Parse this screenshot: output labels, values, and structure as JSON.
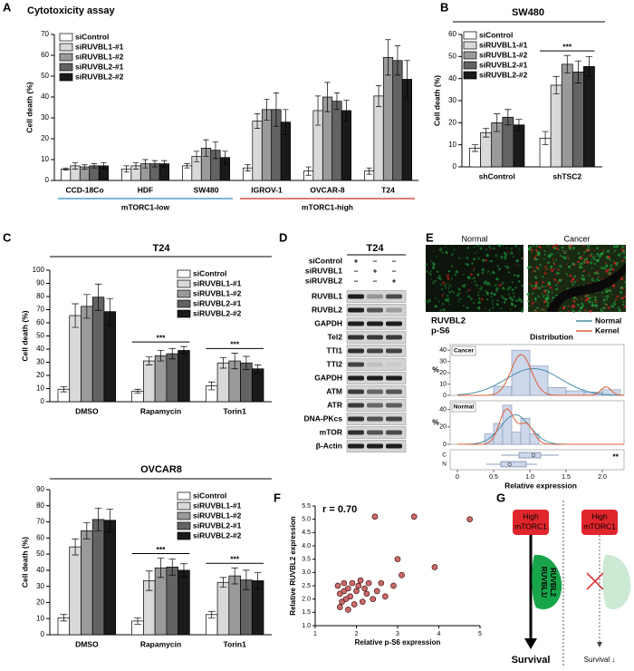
{
  "chart_data": [
    {
      "type": "bar",
      "panel_label": "A",
      "title": "Cytotoxicity assay",
      "ylabel": "Cell death (%)",
      "categories": [
        "CCD-18Co",
        "HDF",
        "SW480",
        "IGROV-1",
        "OVCAR-8",
        "T24"
      ],
      "series": [
        {
          "name": "siControl",
          "color": "#ffffff",
          "values": [
            5.5,
            5.5,
            7,
            6,
            4.5,
            4.5
          ],
          "errors": [
            0.5,
            1.5,
            1,
            1.5,
            2,
            1.5
          ]
        },
        {
          "name": "siRUVBL1-#1",
          "color": "#d9d9d9",
          "values": [
            7,
            7,
            11.5,
            28.5,
            33.5,
            40.5
          ],
          "errors": [
            1.5,
            1.5,
            2.5,
            3.5,
            7,
            5
          ]
        },
        {
          "name": "siRUVBL1-#2",
          "color": "#9a9a9a",
          "values": [
            6.5,
            8,
            15.5,
            34,
            40,
            59
          ],
          "errors": [
            1,
            2,
            4,
            5,
            7,
            8.5
          ]
        },
        {
          "name": "siRUVBL2-#1",
          "color": "#636363",
          "values": [
            7,
            8,
            14.5,
            34,
            38,
            57.5
          ],
          "errors": [
            1,
            1.5,
            4,
            8,
            4,
            7
          ]
        },
        {
          "name": "siRUVBL2-#2",
          "color": "#1a1a1a",
          "values": [
            7,
            8,
            11,
            28,
            33.5,
            48.5
          ],
          "errors": [
            1.5,
            1.5,
            3,
            6,
            5,
            9
          ]
        }
      ],
      "ylim": [
        0,
        70
      ],
      "yticks": [
        0,
        10,
        20,
        30,
        40,
        50,
        60,
        70
      ],
      "groups": [
        {
          "label": "mTORC1-low",
          "categories": [
            "CCD-18Co",
            "HDF",
            "SW480"
          ],
          "color": "#2f8ac4"
        },
        {
          "label": "mTORC1-high",
          "categories": [
            "IGROV-1",
            "OVCAR-8",
            "T24"
          ],
          "color": "#d12a2a"
        }
      ]
    },
    {
      "type": "bar",
      "panel_label": "B",
      "title": "SW480",
      "ylabel": "Cell death (%)",
      "categories": [
        "shControl",
        "shTSC2"
      ],
      "series": [
        {
          "name": "siControl",
          "color": "#ffffff",
          "values": [
            8.5,
            13
          ],
          "errors": [
            1.5,
            3
          ]
        },
        {
          "name": "siRUVBL1-#1",
          "color": "#d9d9d9",
          "values": [
            15.5,
            37
          ],
          "errors": [
            2,
            4
          ]
        },
        {
          "name": "siRUVBL1-#2",
          "color": "#9a9a9a",
          "values": [
            20,
            46.5
          ],
          "errors": [
            4,
            4
          ]
        },
        {
          "name": "siRUVBL2-#1",
          "color": "#636363",
          "values": [
            22.5,
            43
          ],
          "errors": [
            3.5,
            5
          ]
        },
        {
          "name": "siRUVBL2-#2",
          "color": "#1a1a1a",
          "values": [
            19,
            45.5
          ],
          "errors": [
            2.5,
            4.5
          ]
        }
      ],
      "ylim": [
        0,
        60
      ],
      "yticks": [
        0,
        10,
        20,
        30,
        40,
        50,
        60
      ],
      "annotations": [
        {
          "text": "***",
          "category": "shTSC2"
        }
      ]
    },
    {
      "type": "bar",
      "panel_label": "C",
      "title": "T24",
      "ylabel": "Cell death (%)",
      "categories": [
        "DMSO",
        "Rapamycin",
        "Torin1"
      ],
      "series": [
        {
          "name": "siControl",
          "color": "#ffffff",
          "values": [
            9.5,
            8,
            12
          ],
          "errors": [
            2,
            1.5,
            3
          ]
        },
        {
          "name": "siRUVBL1-#1",
          "color": "#d9d9d9",
          "values": [
            65.5,
            31,
            29.5
          ],
          "errors": [
            9,
            3,
            4
          ]
        },
        {
          "name": "siRUVBL1-#2",
          "color": "#9a9a9a",
          "values": [
            72.5,
            35,
            31
          ],
          "errors": [
            9,
            4,
            6
          ]
        },
        {
          "name": "siRUVBL2-#1",
          "color": "#636363",
          "values": [
            79.5,
            36.5,
            29.5
          ],
          "errors": [
            10,
            4,
            5
          ]
        },
        {
          "name": "siRUVBL2-#2",
          "color": "#1a1a1a",
          "values": [
            68.5,
            39,
            25
          ],
          "errors": [
            10,
            3,
            3
          ]
        }
      ],
      "ylim": [
        0,
        100
      ],
      "yticks": [
        0,
        10,
        20,
        30,
        40,
        50,
        60,
        70,
        80,
        90,
        100
      ],
      "annotations": [
        {
          "text": "***",
          "category": "Rapamycin"
        },
        {
          "text": "***",
          "category": "Torin1"
        }
      ]
    },
    {
      "type": "bar",
      "title": "OVCAR8",
      "ylabel": "Cell death (%)",
      "categories": [
        "DMSO",
        "Rapamycin",
        "Torin1"
      ],
      "series": [
        {
          "name": "siControl",
          "color": "#ffffff",
          "values": [
            10.5,
            8.5,
            12.5
          ],
          "errors": [
            2,
            2,
            2
          ]
        },
        {
          "name": "siRUVBL1-#1",
          "color": "#d9d9d9",
          "values": [
            54.5,
            33.5,
            32.5
          ],
          "errors": [
            5,
            6,
            3
          ]
        },
        {
          "name": "siRUVBL1-#2",
          "color": "#9a9a9a",
          "values": [
            64.5,
            41.5,
            36.5
          ],
          "errors": [
            5,
            6,
            5
          ]
        },
        {
          "name": "siRUVBL2-#1",
          "color": "#636363",
          "values": [
            71.5,
            42,
            34
          ],
          "errors": [
            7,
            5,
            6
          ]
        },
        {
          "name": "siRUVBL2-#2",
          "color": "#1a1a1a",
          "values": [
            71,
            40,
            33.5
          ],
          "errors": [
            7,
            4,
            5
          ]
        }
      ],
      "ylim": [
        0,
        90
      ],
      "yticks": [
        0,
        10,
        20,
        30,
        40,
        50,
        60,
        70,
        80,
        90
      ],
      "annotations": [
        {
          "text": "***",
          "category": "Rapamycin"
        },
        {
          "text": "***",
          "category": "Torin1"
        }
      ]
    },
    {
      "type": "histogram",
      "title": "Distribution",
      "tag": "Cancer",
      "ylabel": "%",
      "bins": [
        0.5,
        0.75,
        1.0,
        1.25,
        1.5,
        1.75,
        2.0,
        2.25
      ],
      "counts": [
        8,
        40,
        26,
        7,
        4,
        3,
        5
      ],
      "color": "#cdd8ea",
      "xlim": [
        0,
        2.3
      ],
      "ylim": [
        0,
        45
      ],
      "yticks": [
        0,
        10,
        20,
        30,
        40
      ]
    },
    {
      "type": "histogram",
      "tag": "Normal",
      "ylabel": "%",
      "bins": [
        0.375,
        0.5,
        0.625,
        0.75,
        0.875,
        1.0,
        1.125
      ],
      "counts": [
        12,
        24,
        45,
        14,
        30,
        12
      ],
      "color": "#cdd8ea",
      "xlim": [
        0,
        2.3
      ],
      "ylim": [
        0,
        50
      ],
      "yticks": [
        0,
        20,
        40
      ],
      "xticks": [
        0,
        0.5,
        {
          "value": 1,
          "label": "1.0"
        },
        1.5,
        {
          "value": 2,
          "label": "2.0"
        }
      ],
      "xlabel": "Relative expression",
      "box_labels": [
        "C",
        "N"
      ],
      "annotation": "**"
    },
    {
      "type": "scatter",
      "panel_label": "F",
      "annotation": "r = 0.70",
      "xlabel": "Relative p-S6 expression",
      "ylabel": "Relative RUVBL2 expression",
      "color": "#c96a6a",
      "x": [
        1.55,
        1.6,
        1.65,
        1.7,
        1.75,
        1.8,
        1.85,
        1.9,
        1.95,
        2.0,
        2.05,
        2.1,
        2.15,
        2.2,
        2.25,
        2.3,
        2.4,
        2.5,
        2.45,
        2.6,
        2.7,
        2.9,
        3.0,
        3.1,
        3.4,
        3.9,
        4.75,
        1.6,
        1.7,
        1.8
      ],
      "y": [
        2.5,
        2.2,
        1.9,
        2.6,
        2.0,
        2.4,
        2.1,
        2.6,
        1.8,
        2.3,
        2.5,
        2.7,
        1.9,
        2.4,
        2.2,
        2.6,
        2.0,
        2.3,
        5.1,
        2.6,
        2.1,
        2.5,
        3.5,
        2.9,
        5.1,
        3.2,
        5.0,
        1.7,
        2.3,
        1.6
      ],
      "xlim": [
        1,
        5
      ],
      "xticks": [
        1,
        2,
        3,
        4,
        5
      ],
      "ylim": [
        1,
        5.5
      ],
      "yticks": [
        {
          "value": 1,
          "label": "1.0"
        },
        1.5,
        {
          "value": 2,
          "label": "2.0"
        },
        2.5,
        {
          "value": 3,
          "label": "3.0"
        },
        3.5,
        {
          "value": 4,
          "label": "4.0"
        },
        4.5,
        {
          "value": 5,
          "label": "5.0"
        },
        5.5
      ]
    }
  ],
  "blot": {
    "panel_label": "D",
    "title": "T24",
    "conditions": [
      {
        "name": "siControl",
        "signs": [
          "+",
          "–",
          "–"
        ]
      },
      {
        "name": "siRUVBL1",
        "signs": [
          "–",
          "+",
          "–"
        ]
      },
      {
        "name": "siRUVBL2",
        "signs": [
          "–",
          "–",
          "+"
        ]
      }
    ],
    "bands": [
      "RUVBL1",
      "RUVBL2",
      "GAPDH",
      "Tel2",
      "TTI1",
      "TTI2",
      "GAPDH",
      "ATM",
      "ATR",
      "DNA-PKcs",
      "mTOR",
      "β-Actin"
    ]
  },
  "image_panel": {
    "panel_label": "E",
    "images": [
      "Normal",
      "Cancer"
    ],
    "stains": [
      {
        "name": "RUVBL2",
        "color": "#1f9a3c"
      },
      {
        "name": "p-S6",
        "color": "#d42020"
      }
    ],
    "fit_legend": [
      {
        "name": "Normal",
        "color": "#4a8fa8"
      },
      {
        "name": "Kernel",
        "color": "#e0603a"
      }
    ]
  },
  "diagram": {
    "panel_label": "G",
    "left": {
      "box": [
        "High",
        "mTORC1"
      ],
      "complex": [
        "RUVBL1/",
        "RUVBL2"
      ],
      "outcome": "Survival"
    },
    "right": {
      "box": [
        "High",
        "mTORC1"
      ],
      "outcome": "Survival ↓"
    }
  }
}
